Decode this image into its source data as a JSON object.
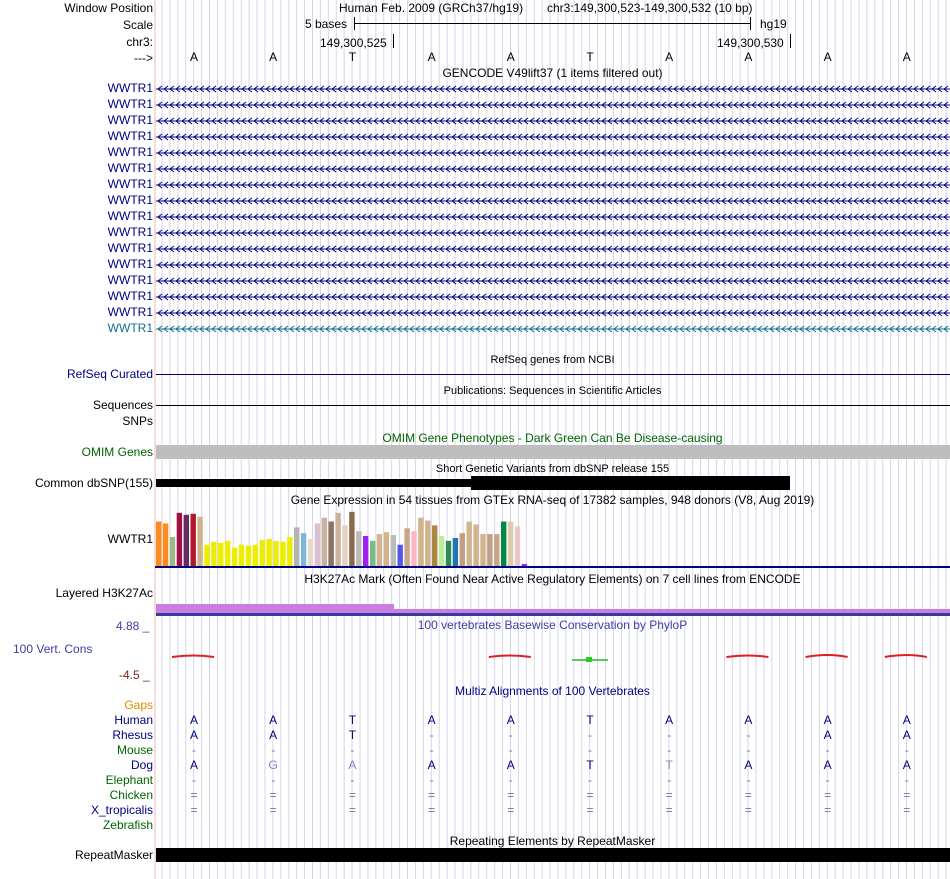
{
  "header": {
    "window_position_label": "Window Position",
    "scale_label": "Scale",
    "chr_label": "chr3:",
    "arrow_label": "--->",
    "assembly": "Human Feb. 2009 (GRCh37/hg19)",
    "position": "chr3:149,300,523-149,300,532 (10 bp)",
    "scale_text": "5 bases",
    "db": "hg19",
    "coord_left": "149,300,525",
    "coord_right": "149,300,530",
    "bases": [
      "A",
      "A",
      "T",
      "A",
      "A",
      "T",
      "A",
      "A",
      "A",
      "A"
    ]
  },
  "gencode": {
    "title": "GENCODE V49lift37 (1 items filtered out)",
    "rows": [
      "WWTR1",
      "WWTR1",
      "WWTR1",
      "WWTR1",
      "WWTR1",
      "WWTR1",
      "WWTR1",
      "WWTR1",
      "WWTR1",
      "WWTR1",
      "WWTR1",
      "WWTR1",
      "WWTR1",
      "WWTR1",
      "WWTR1",
      "WWTR1"
    ],
    "colors": [
      "#000080",
      "#000080",
      "#000080",
      "#000080",
      "#000080",
      "#000080",
      "#000080",
      "#000080",
      "#000080",
      "#000080",
      "#000080",
      "#000080",
      "#000080",
      "#000080",
      "#000080",
      "#0c7090"
    ]
  },
  "refseq": {
    "title": "RefSeq genes from NCBI",
    "label": "RefSeq Curated"
  },
  "pubs": {
    "title": "Publications: Sequences in Scientific Articles",
    "label1": "Sequences",
    "label2": "SNPs"
  },
  "omim": {
    "title": "OMIM Gene Phenotypes - Dark Green Can Be Disease-causing",
    "label": "OMIM Genes"
  },
  "dbsnp": {
    "title": "Short Genetic Variants from dbSNP release 155",
    "label": "Common dbSNP(155)"
  },
  "gtex": {
    "title": "Gene Expression in 54 tissues from GTEx RNA-seq of 17382 samples, 948 donors (V8, Aug 2019)",
    "label": "WWTR1",
    "chart_data": {
      "type": "bar",
      "title": "Gene Expression in 54 tissues from GTEx RNA-seq of 17382 samples, 948 donors (V8, Aug 2019)",
      "ylim": [
        0,
        60
      ],
      "values": [
        46,
        44,
        30,
        55,
        53,
        54,
        51,
        22,
        25,
        24,
        26,
        19,
        22,
        21,
        22,
        27,
        28,
        26,
        25,
        30,
        40,
        34,
        28,
        44,
        50,
        46,
        55,
        42,
        56,
        36,
        31,
        26,
        33,
        35,
        32,
        22,
        39,
        36,
        50,
        47,
        42,
        31,
        26,
        29,
        34,
        46,
        43,
        33,
        33,
        33,
        46,
        46,
        41,
        2
      ],
      "colors": [
        "#ff8c1a",
        "#ff8c1a",
        "#99bb88",
        "#a50f49",
        "#6a2a60",
        "#b2182b",
        "#d2b48c",
        "#eded00",
        "#eded00",
        "#eded00",
        "#eded00",
        "#eded00",
        "#eded00",
        "#eded00",
        "#eded00",
        "#eded00",
        "#eded00",
        "#eded00",
        "#eded00",
        "#eded00",
        "#b3b3b3",
        "#7bb8d8",
        "#e6d9c8",
        "#d9c0d0",
        "#c9b39c",
        "#8b7360",
        "#c9b39c",
        "#e5d0c6",
        "#8b6a4e",
        "#bbbbbb",
        "#a020f0",
        "#77bb88",
        "#d2b48c",
        "#d2b48c",
        "#bbbbbb",
        "#5555ee",
        "#c7a58c",
        "#ffb6c1",
        "#d2b48c",
        "#d2b48c",
        "#aa8844",
        "#bbee99",
        "#2e8b57",
        "#1f77b4",
        "#c29e86",
        "#d2b48c",
        "#d2b48c",
        "#d2b48c",
        "#c0a080",
        "#c8a68c",
        "#008844",
        "#ddccaa",
        "#e8c8c8",
        "#a020f0"
      ]
    }
  },
  "h3k27ac": {
    "title": "H3K27Ac Mark (Often Found Near Active Regulatory Elements) on 7 cell lines from ENCODE",
    "label": "Layered H3K27Ac"
  },
  "phylop": {
    "title": "100 vertebrates Basewise Conservation by PhyloP",
    "label": "100 Vert. Cons",
    "ymax": "4.88 _",
    "ymin": "-4.5 _",
    "values": [
      0.3,
      0,
      0,
      0,
      0.3,
      0.1,
      0,
      0.3,
      0.4,
      0.4
    ]
  },
  "multiz": {
    "title": "Multiz Alignments of 100 Vertebrates",
    "gaps_label": "Gaps",
    "species": [
      {
        "name": "Human",
        "color": "#000080",
        "bases": [
          "A",
          "A",
          "T",
          "A",
          "A",
          "T",
          "A",
          "A",
          "A",
          "A"
        ]
      },
      {
        "name": "Rhesus",
        "color": "#000080",
        "bases": [
          "A",
          "A",
          "T",
          "-",
          "-",
          "-",
          "-",
          "-",
          "A",
          "A"
        ]
      },
      {
        "name": "Mouse",
        "color": "#006400",
        "bases": [
          "-",
          "-",
          "-",
          "-",
          "-",
          "-",
          "-",
          "-",
          "-",
          "-"
        ]
      },
      {
        "name": "Dog",
        "color": "#000080",
        "bases": [
          "A",
          "G",
          "A",
          "A",
          "A",
          "T",
          "T",
          "A",
          "A",
          "A"
        ]
      },
      {
        "name": "Elephant",
        "color": "#006400",
        "bases": [
          "-",
          "-",
          "-",
          "-",
          "-",
          "-",
          "-",
          "-",
          "-",
          "-"
        ]
      },
      {
        "name": "Chicken",
        "color": "#006400",
        "bases": [
          "=",
          "=",
          "=",
          "=",
          "=",
          "=",
          "=",
          "=",
          "=",
          "="
        ]
      },
      {
        "name": "X_tropicalis",
        "color": "#000080",
        "bases": [
          "=",
          "=",
          "=",
          "=",
          "=",
          "=",
          "=",
          "=",
          "=",
          "="
        ]
      },
      {
        "name": "Zebrafish",
        "color": "#006400",
        "bases": []
      }
    ]
  },
  "repeatmasker": {
    "title": "Repeating Elements by RepeatMasker",
    "label": "RepeatMasker"
  }
}
